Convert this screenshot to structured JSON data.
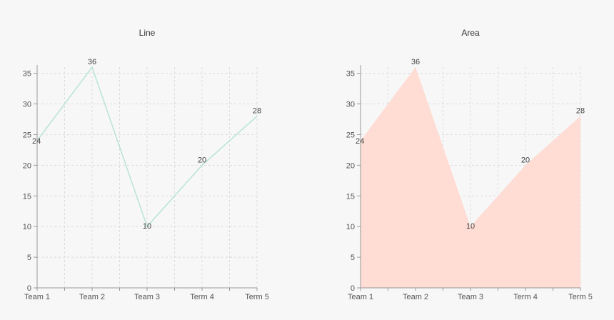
{
  "chart_data": [
    {
      "type": "line",
      "title": "Line",
      "categories": [
        "Team 1",
        "Team 2",
        "Team 3",
        "Term 4",
        "Term 5"
      ],
      "series": [
        {
          "values": [
            24,
            36,
            10,
            20,
            28
          ]
        }
      ],
      "ylim": [
        0,
        36
      ],
      "yticks": [
        0,
        5,
        10,
        15,
        20,
        25,
        30,
        35
      ],
      "grid": true,
      "color": "#b9e4d9"
    },
    {
      "type": "area",
      "title": "Area",
      "categories": [
        "Team 1",
        "Team 2",
        "Team 3",
        "Term 4",
        "Term 5"
      ],
      "series": [
        {
          "values": [
            24,
            36,
            10,
            20,
            28
          ]
        }
      ],
      "ylim": [
        0,
        36
      ],
      "yticks": [
        0,
        5,
        10,
        15,
        20,
        25,
        30,
        35
      ],
      "grid": true,
      "color": "#ffdcd4"
    }
  ]
}
